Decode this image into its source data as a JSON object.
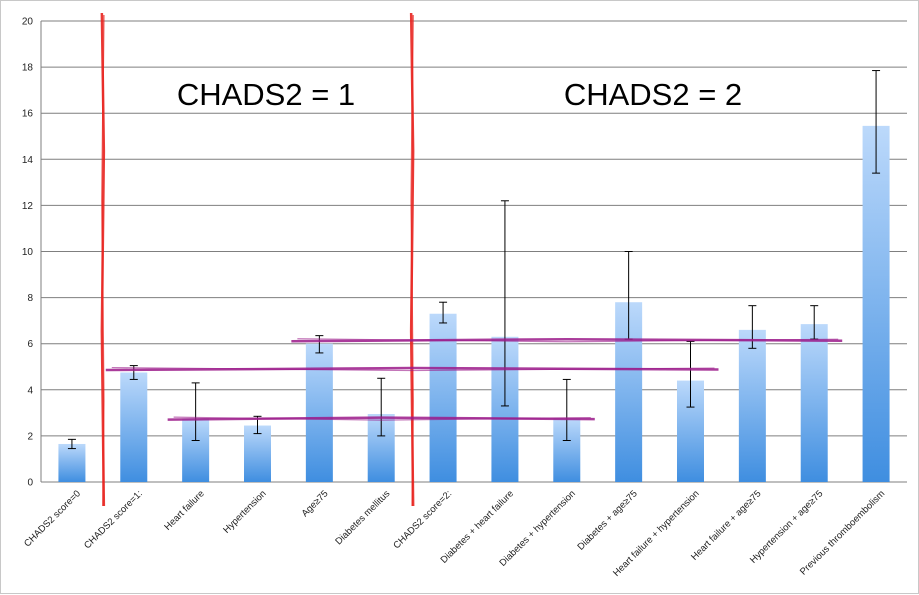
{
  "chart_data": {
    "type": "bar",
    "ylim": [
      0,
      20
    ],
    "yticks": [
      0,
      2,
      4,
      6,
      8,
      10,
      12,
      14,
      16,
      18,
      20
    ],
    "grid": true,
    "categories": [
      "CHADS2 score=0",
      "CHADS2 score=1:",
      "Heart failure",
      "Hypertension",
      "Age≥75",
      "Diabetes mellitus",
      "CHADS2 score=2:",
      "Diabetes + heart failure",
      "Diabetes + hypertension",
      "Diabetes + age≥75",
      "Heart failure + hypertension",
      "Heart failure + age≥75",
      "Hypertension + age≥75",
      "Previous thromboembolism"
    ],
    "values": [
      1.65,
      4.75,
      2.75,
      2.45,
      6.0,
      2.95,
      7.3,
      6.3,
      2.75,
      7.8,
      4.4,
      6.6,
      6.85,
      15.45
    ],
    "error_low": [
      1.45,
      4.45,
      1.8,
      2.1,
      5.6,
      2.0,
      6.9,
      3.3,
      1.8,
      6.2,
      3.25,
      5.8,
      6.2,
      13.4
    ],
    "error_high": [
      1.85,
      5.05,
      4.3,
      2.85,
      6.35,
      4.5,
      7.8,
      12.2,
      4.45,
      10.0,
      6.1,
      7.65,
      7.65,
      17.85
    ],
    "annotations": {
      "group1_label": "CHADS2 = 1",
      "group2_label": "CHADS2 = 2"
    },
    "reference_lines": [
      {
        "y": 2.75,
        "from_category": 2,
        "to_category": 8
      },
      {
        "y": 4.9,
        "from_category": 1,
        "to_category": 10
      },
      {
        "y": 6.15,
        "from_category": 4,
        "to_category": 12
      }
    ],
    "separators_after_category": [
      0,
      5
    ]
  },
  "colors": {
    "bar_top": "#bcd9fb",
    "bar_bottom": "#3f8ee0",
    "error_bar": "#000000",
    "grid": "#7f7f7f",
    "separator": "#e8231f",
    "reference_line": "#9b1a8a"
  }
}
